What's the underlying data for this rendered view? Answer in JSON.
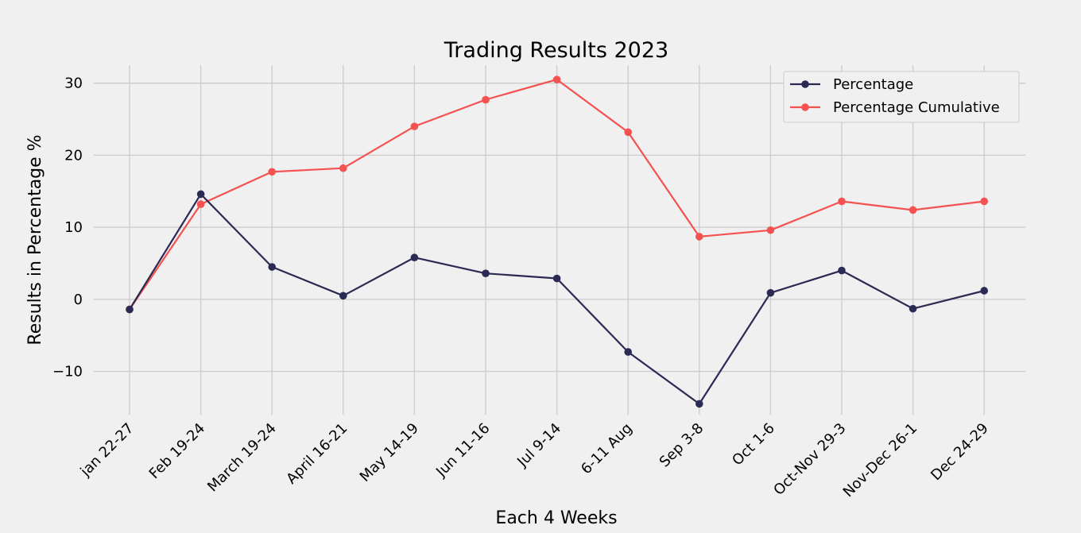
{
  "chart_data": {
    "type": "line",
    "title": "Trading Results 2023",
    "xlabel": "Each 4 Weeks",
    "ylabel": "Results in Percentage %",
    "categories": [
      "jan 22-27",
      "Feb 19-24",
      "March 19-24",
      "April 16-21",
      "May 14-19",
      "Jun 11-16",
      "Jul 9-14",
      "6-11 Aug",
      "Sep 3-8",
      "Oct 1-6",
      "Oct-Nov 29-3",
      "Nov-Dec 26-1",
      "Dec 24-29"
    ],
    "yticks": [
      -10,
      0,
      10,
      20,
      30
    ],
    "ytick_labels": [
      "−10",
      "0",
      "10",
      "20",
      "30"
    ],
    "ylim": [
      -16.0,
      32.5
    ],
    "grid": true,
    "legend_position": "top-right",
    "series": [
      {
        "name": "Percentage",
        "color": "#2b2a55",
        "values": [
          -1.4,
          14.6,
          4.5,
          0.5,
          5.8,
          3.6,
          2.9,
          -7.3,
          -14.5,
          0.9,
          4.0,
          -1.3,
          1.2
        ]
      },
      {
        "name": "Percentage Cumulative",
        "color": "#f55151",
        "values": [
          -1.4,
          13.2,
          17.7,
          18.2,
          24.0,
          27.7,
          30.5,
          23.2,
          8.7,
          9.6,
          13.6,
          12.4,
          13.6
        ]
      }
    ]
  }
}
